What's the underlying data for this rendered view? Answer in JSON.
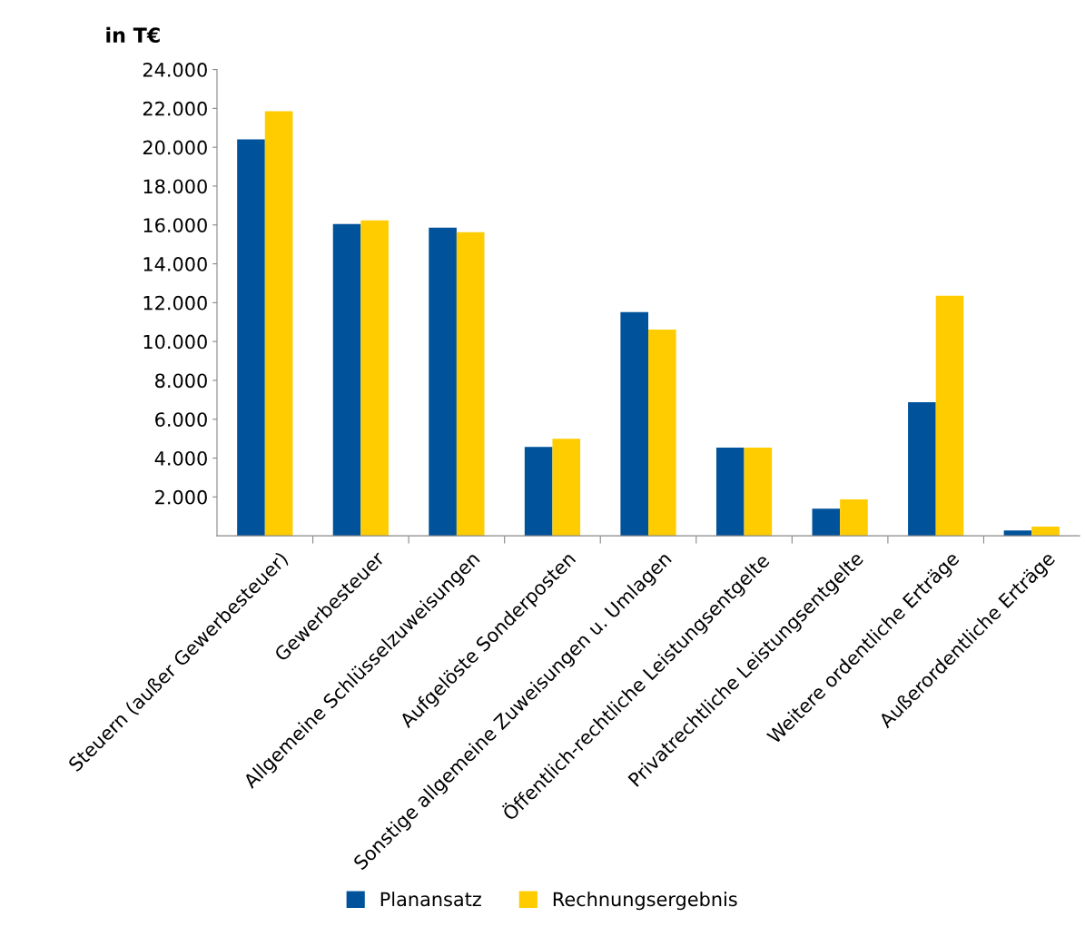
{
  "chart_data": {
    "type": "bar",
    "ylabel": "in T€",
    "categories": [
      "Steuern (außer Gewerbesteuer)",
      "Gewerbesteuer",
      "Allgemeine Schlüsselzuweisungen",
      "Aufgelöste Sonderposten",
      "Sonstige allgemeine Zuweisungen u. Umlagen",
      "Öffentlich-rechtliche Leistungsentgelte",
      "Privatrechtliche Leistungsentgelte",
      "Weitere ordentliche Erträge",
      "Außerordentliche Erträge"
    ],
    "series": [
      {
        "name": "Planansatz",
        "color": "#00529b",
        "values": [
          20400,
          16050,
          15860,
          4580,
          11510,
          4540,
          1400,
          6880,
          280
        ]
      },
      {
        "name": "Rechnungsergebnis",
        "color": "#ffcc00",
        "values": [
          21850,
          16230,
          15630,
          5000,
          10620,
          4540,
          1870,
          12350,
          470
        ]
      }
    ],
    "ylim": [
      0,
      24000
    ],
    "yticks": [
      {
        "value": 2000,
        "label": "2.000"
      },
      {
        "value": 4000,
        "label": "4.000"
      },
      {
        "value": 6000,
        "label": "6.000"
      },
      {
        "value": 8000,
        "label": "8.000"
      },
      {
        "value": 10000,
        "label": "10.000"
      },
      {
        "value": 12000,
        "label": "12.000"
      },
      {
        "value": 14000,
        "label": "14.000"
      },
      {
        "value": 16000,
        "label": "16.000"
      },
      {
        "value": 18000,
        "label": "18.000"
      },
      {
        "value": 20000,
        "label": "20.000"
      },
      {
        "value": 22000,
        "label": "22.000"
      },
      {
        "value": 24000,
        "label": "24.000"
      }
    ],
    "grid": false,
    "legend": "bottom"
  }
}
